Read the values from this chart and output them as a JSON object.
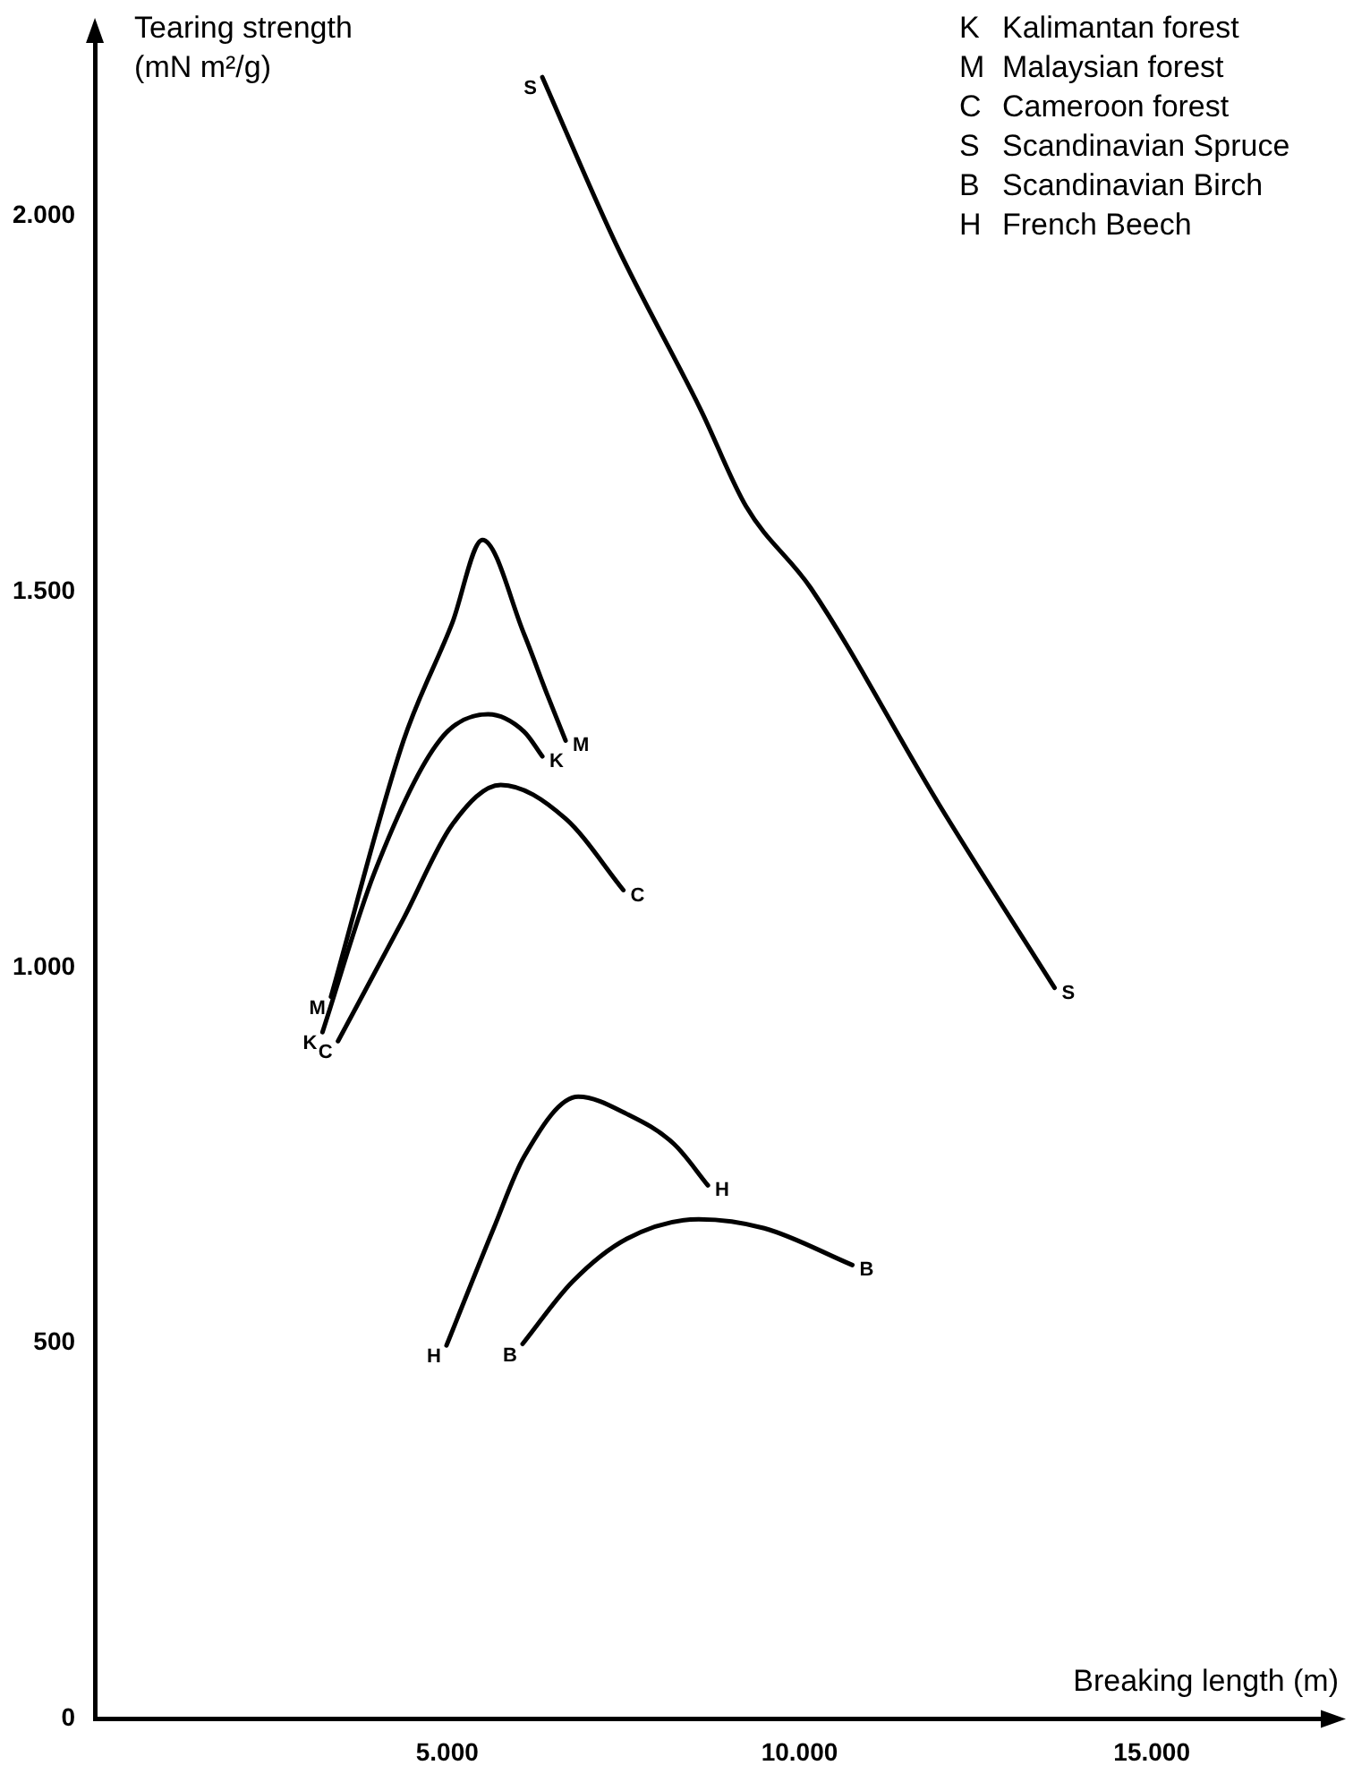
{
  "chart_data": {
    "type": "line",
    "xlabel": "Breaking length (m)",
    "ylabel": "Tearing strength (mN m²/g)",
    "xlim": [
      0,
      17500
    ],
    "ylim": [
      0,
      2240
    ],
    "xticks": [
      {
        "value": 0,
        "label": null
      },
      {
        "value": 5000,
        "label": "5.000"
      },
      {
        "value": 10000,
        "label": "10.000"
      },
      {
        "value": 15000,
        "label": "15.000"
      }
    ],
    "yticks": [
      0,
      500,
      {
        "value": 1000,
        "label": "1.000"
      },
      {
        "value": 1500,
        "label": "1.500"
      },
      {
        "value": 2000,
        "label": "2.000"
      }
    ],
    "grid": false,
    "legend": false,
    "marker": "none",
    "line_style": "solid",
    "series": [
      {
        "name": "K",
        "color": "#000000",
        "x": [
          3230,
          3970,
          4890,
          5580,
          6090,
          6350
        ],
        "values": [
          914,
          1127,
          1302,
          1337,
          1314,
          1281
        ]
      },
      {
        "name": "M",
        "color": "#000000",
        "x": [
          3350,
          4380,
          5070,
          5500,
          6090,
          6420,
          6680
        ],
        "values": [
          961,
          1302,
          1458,
          1569,
          1444,
          1363,
          1302
        ]
      },
      {
        "name": "C",
        "color": "#000000",
        "x": [
          3450,
          4380,
          5070,
          5760,
          6680,
          7500
        ],
        "values": [
          902,
          1065,
          1190,
          1243,
          1198,
          1103
        ]
      },
      {
        "name": "S",
        "color": "#000000",
        "x": [
          6350,
          7400,
          8600,
          9240,
          10160,
          11980,
          13620
        ],
        "values": [
          2185,
          1962,
          1742,
          1614,
          1505,
          1217,
          973
        ]
      },
      {
        "name": "B",
        "color": "#000000",
        "x": [
          6070,
          6780,
          7550,
          8570,
          9500,
          10750
        ],
        "values": [
          499,
          582,
          639,
          665,
          653,
          604
        ]
      },
      {
        "name": "H",
        "color": "#000000",
        "x": [
          4990,
          5660,
          6090,
          6860,
          7550,
          8220,
          8700
        ],
        "values": [
          497,
          653,
          748,
          828,
          805,
          765,
          710
        ]
      }
    ],
    "annotations": [
      "K  Kalimantan forest",
      "M  Malaysian forest",
      "C  Cameroon forest",
      "S  Scandinavian Spruce",
      "B  Scandinavian Birch",
      "H  French Beech"
    ]
  }
}
